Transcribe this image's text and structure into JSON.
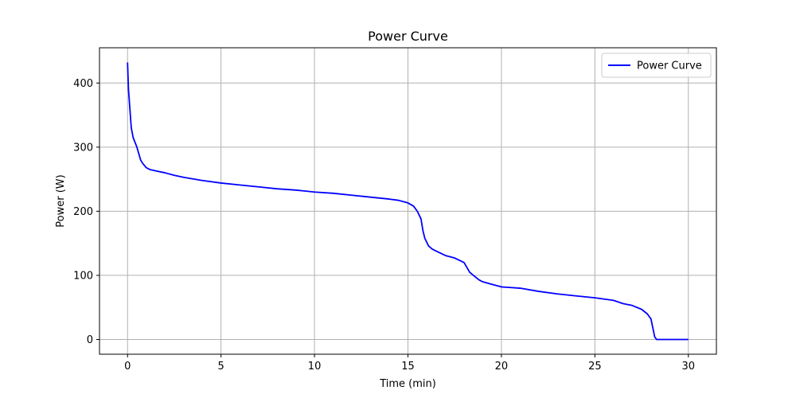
{
  "chart_data": {
    "type": "line",
    "title": "Power Curve",
    "xlabel": "Time (min)",
    "ylabel": "Power (W)",
    "xlim": [
      -1.5,
      31.5
    ],
    "ylim": [
      -23,
      455
    ],
    "xticks": [
      0,
      5,
      10,
      15,
      20,
      25,
      30
    ],
    "yticks": [
      0,
      100,
      200,
      300,
      400
    ],
    "grid": true,
    "legend_position": "top-right",
    "series": [
      {
        "name": "Power Curve",
        "color": "#0000ff",
        "x": [
          0,
          0.05,
          0.1,
          0.2,
          0.3,
          0.5,
          0.7,
          0.8,
          1.0,
          1.2,
          1.5,
          2.0,
          2.5,
          3,
          4,
          5,
          6,
          7,
          8,
          9,
          10,
          11,
          12,
          13,
          14,
          14.5,
          15,
          15.3,
          15.5,
          15.7,
          15.8,
          15.9,
          16.0,
          16.1,
          16.3,
          16.5,
          17.0,
          17.5,
          18.0,
          18.3,
          18.5,
          18.8,
          19.0,
          19.5,
          20,
          21,
          22,
          23,
          24,
          25,
          25.5,
          26,
          26.5,
          27,
          27.5,
          27.8,
          28.0,
          28.1,
          28.2,
          28.3,
          29,
          30
        ],
        "y": [
          432,
          390,
          370,
          330,
          315,
          300,
          280,
          275,
          268,
          265,
          263,
          260,
          256,
          253,
          248,
          244,
          241,
          238,
          235,
          233,
          230,
          228,
          225,
          222,
          219,
          217,
          213,
          208,
          200,
          188,
          170,
          158,
          152,
          146,
          141,
          138,
          131,
          127,
          120,
          105,
          100,
          93,
          90,
          86,
          82,
          80,
          75,
          71,
          68,
          65,
          63,
          61,
          56,
          53,
          47,
          40,
          32,
          18,
          4,
          0,
          0,
          0
        ]
      }
    ]
  }
}
